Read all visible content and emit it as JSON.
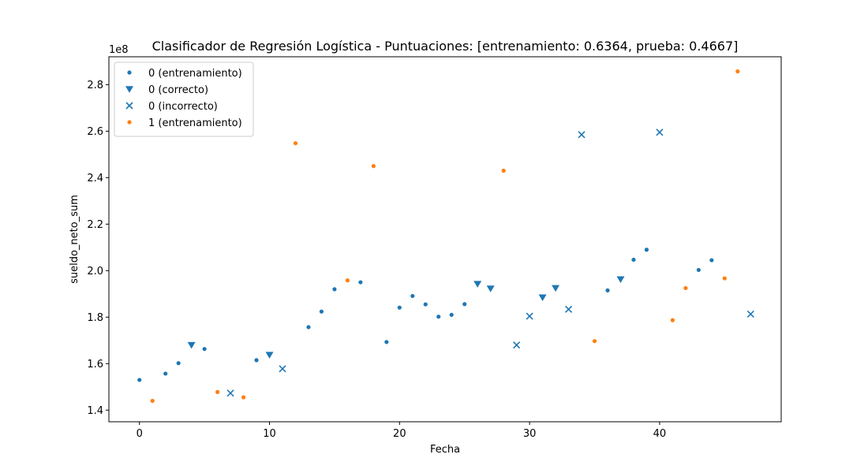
{
  "chart_data": {
    "type": "scatter",
    "title": "Clasificador de Regresión Logística - Puntuaciones: [entrenamiento: 0.6364, prueba: 0.4667]",
    "xlabel": "Fecha",
    "ylabel": "sueldo_neto_sum",
    "y_offset_label": "1e8",
    "xlim": [
      -2.35,
      49.35
    ],
    "ylim": [
      1.35,
      2.92
    ],
    "x_ticks": [
      0,
      10,
      20,
      30,
      40
    ],
    "y_ticks": [
      1.4,
      1.6,
      1.8,
      2.0,
      2.2,
      2.4,
      2.6,
      2.8
    ],
    "y_tick_labels": [
      "1.4",
      "1.6",
      "1.8",
      "2.0",
      "2.2",
      "2.4",
      "2.6",
      "2.8"
    ],
    "grid": false,
    "legend_position": "top-left",
    "colors": {
      "class0": "#1f77b4",
      "class1": "#ff7f0e"
    },
    "series": [
      {
        "name": "0 (entrenamiento)",
        "marker": "dot",
        "color": "#1f77b4",
        "points": [
          [
            0,
            1.53
          ],
          [
            2,
            1.557
          ],
          [
            3,
            1.602
          ],
          [
            5,
            1.663
          ],
          [
            9,
            1.615
          ],
          [
            13,
            1.757
          ],
          [
            14,
            1.824
          ],
          [
            15,
            1.92
          ],
          [
            17,
            1.95
          ],
          [
            19,
            1.693
          ],
          [
            20,
            1.841
          ],
          [
            21,
            1.891
          ],
          [
            22,
            1.855
          ],
          [
            23,
            1.802
          ],
          [
            24,
            1.81
          ],
          [
            25,
            1.856
          ],
          [
            36,
            1.915
          ],
          [
            38,
            2.047
          ],
          [
            39,
            2.09
          ],
          [
            43,
            2.003
          ],
          [
            44,
            2.045
          ]
        ]
      },
      {
        "name": "0 (correcto)",
        "marker": "triangle-down",
        "color": "#1f77b4",
        "points": [
          [
            4,
            1.68
          ],
          [
            10,
            1.638
          ],
          [
            26,
            1.943
          ],
          [
            27,
            1.923
          ],
          [
            31,
            1.885
          ],
          [
            32,
            1.925
          ],
          [
            37,
            1.963
          ]
        ]
      },
      {
        "name": "0 (incorrecto)",
        "marker": "x",
        "color": "#1f77b4",
        "points": [
          [
            7,
            1.473
          ],
          [
            11,
            1.578
          ],
          [
            29,
            1.68
          ],
          [
            30,
            1.804
          ],
          [
            33,
            1.834
          ],
          [
            34,
            2.585
          ],
          [
            40,
            2.595
          ],
          [
            47,
            1.813
          ]
        ]
      },
      {
        "name": "1 (entrenamiento)",
        "marker": "dot",
        "color": "#ff7f0e",
        "points": [
          [
            1,
            1.44
          ],
          [
            6,
            1.478
          ],
          [
            8,
            1.455
          ],
          [
            12,
            2.548
          ],
          [
            16,
            1.958
          ],
          [
            18,
            2.45
          ],
          [
            28,
            2.43
          ],
          [
            35,
            1.697
          ],
          [
            41,
            1.787
          ],
          [
            42,
            1.925
          ],
          [
            45,
            1.967
          ],
          [
            46,
            2.857
          ]
        ]
      }
    ]
  }
}
